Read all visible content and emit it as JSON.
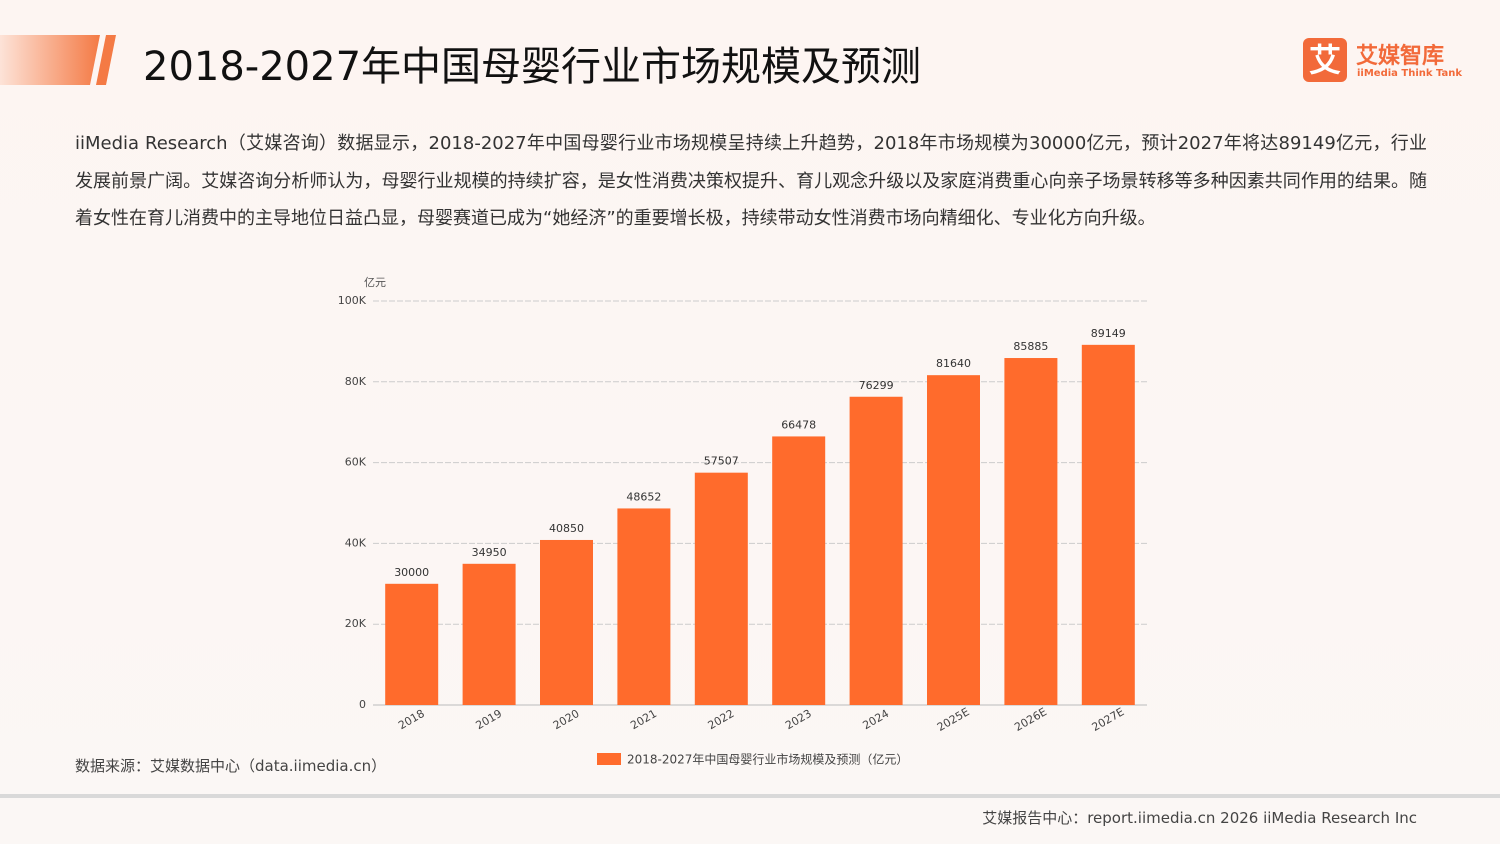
{
  "header": {
    "title": "2018-2027年中国母婴行业市场规模及预测"
  },
  "logo": {
    "icon": "艾",
    "name": "艾媒智库",
    "subtitle": "iiMedia Think Tank"
  },
  "paragraph": "iiMedia Research（艾媒咨询）数据显示，2018-2027年中国母婴行业市场规模呈持续上升趋势，2018年市场规模为30000亿元，预计2027年将达89149亿元，行业发展前景广阔。艾媒咨询分析师认为，母婴行业规模的持续扩容，是女性消费决策权提升、育儿观念升级以及家庭消费重心向亲子场景转移等多种因素共同作用的结果。随着女性在育儿消费中的主导地位日益凸显，母婴赛道已成为“她经济”的重要增长极，持续带动女性消费市场向精细化、专业化方向升级。",
  "source": "数据来源：艾媒数据中心（data.iimedia.cn）",
  "footer": "艾媒报告中心：report.iimedia.cn   2026 iiMedia Research Inc",
  "chart_data": {
    "type": "bar",
    "y_unit": "亿元",
    "categories": [
      "2018",
      "2019",
      "2020",
      "2021",
      "2022",
      "2023",
      "2024",
      "2025E",
      "2026E",
      "2027E"
    ],
    "series": [
      {
        "name": "2018-2027年中国母婴行业市场规模及预测（亿元）",
        "color": "#ff6b2c",
        "values": [
          30000,
          34950,
          40850,
          48652,
          57507,
          66478,
          76299,
          81640,
          85885,
          89149
        ]
      }
    ],
    "ylim": [
      0,
      100000
    ],
    "yticks": [
      0,
      {
        "value": 20000,
        "label": "20K"
      },
      {
        "value": 40000,
        "label": "40K"
      },
      {
        "value": 60000,
        "label": "60K"
      },
      {
        "value": 80000,
        "label": "80K"
      },
      {
        "value": 100000,
        "label": "100K"
      }
    ],
    "grid": true,
    "legend": "bottom"
  }
}
